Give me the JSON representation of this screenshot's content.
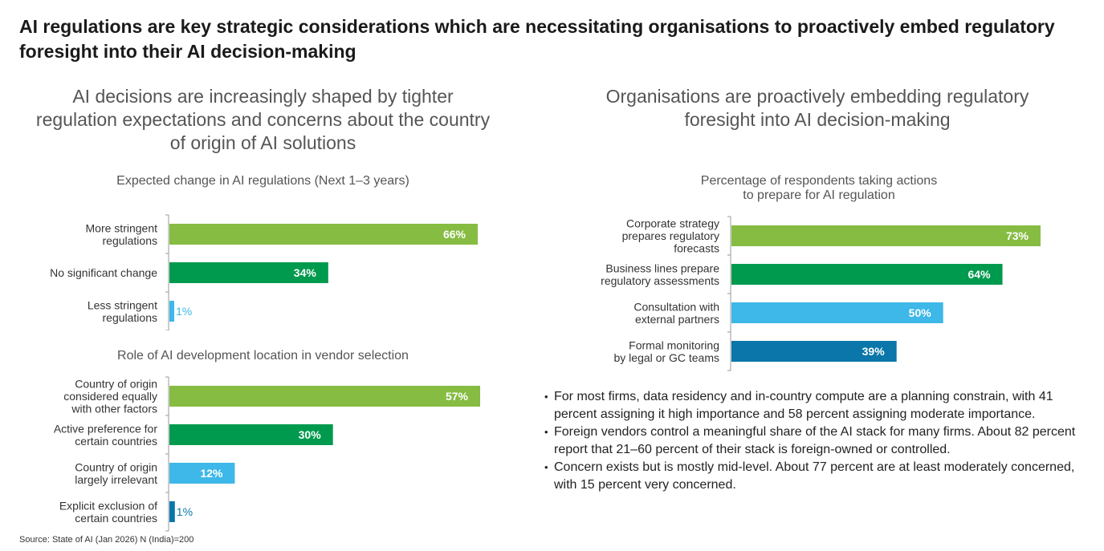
{
  "title": "AI regulations are key strategic considerations which are necessitating organisations to proactively embed regulatory foresight into their AI decision-making",
  "left_section_title": "AI decisions are increasingly shaped by tighter regulation expectations and concerns about the country of origin of AI solutions",
  "right_section_title": "Organisations are proactively embedding regulatory foresight into AI decision-making",
  "bullets": [
    "For most firms, data residency and in-country compute are a planning constrain, with 41 percent assigning it high importance and 58 percent assigning moderate importance.",
    "Foreign vendors control a meaningful share of the AI stack for many firms. About 82 percent report that 21–60 percent of their stack is foreign-owned or controlled.",
    "Concern exists but is mostly mid-level. About 77 percent are at least moderately concerned, with 15 percent very concerned."
  ],
  "source": "Source: State of AI (Jan 2026) N (India)=200",
  "colors": {
    "light_green": "#86bc42",
    "dark_green": "#009a4e",
    "light_blue": "#3db8e8",
    "dark_blue": "#0a76a9"
  },
  "chart_data": [
    {
      "type": "bar",
      "orientation": "horizontal",
      "title": "Expected change in AI regulations (Next 1–3 years)",
      "categories": [
        [
          "More stringent",
          "regulations"
        ],
        [
          "No significant change"
        ],
        [
          "Less stringent",
          "regulations"
        ]
      ],
      "values": [
        66,
        34,
        1
      ],
      "labels": [
        "66%",
        "34%",
        "1%"
      ],
      "colors": [
        "#86bc42",
        "#009a4e",
        "#3db8e8"
      ],
      "xlim": [
        0,
        66
      ],
      "unit": "%"
    },
    {
      "type": "bar",
      "orientation": "horizontal",
      "title": "Role of AI development location in vendor selection",
      "categories": [
        [
          "Country of origin",
          "considered equally",
          "with other factors"
        ],
        [
          "Active preference for",
          "certain countries"
        ],
        [
          "Country of origin",
          "largely irrelevant"
        ],
        [
          "Explicit exclusion of",
          "certain countries"
        ]
      ],
      "values": [
        57,
        30,
        12,
        1
      ],
      "labels": [
        "57%",
        "30%",
        "12%",
        "1%"
      ],
      "colors": [
        "#86bc42",
        "#009a4e",
        "#3db8e8",
        "#0a76a9"
      ],
      "xlim": [
        0,
        57
      ],
      "unit": "%"
    },
    {
      "type": "bar",
      "orientation": "horizontal",
      "title": "Percentage of respondents taking actions to prepare for AI regulation",
      "title_lines": [
        "Percentage of respondents taking actions",
        "to prepare for AI regulation"
      ],
      "categories": [
        [
          "Corporate strategy",
          "prepares regulatory",
          "forecasts"
        ],
        [
          "Business lines prepare",
          "regulatory assessments"
        ],
        [
          "Consultation with",
          "external partners"
        ],
        [
          "Formal monitoring",
          "by legal or GC teams"
        ]
      ],
      "values": [
        73,
        64,
        50,
        39
      ],
      "labels": [
        "73%",
        "64%",
        "50%",
        "39%"
      ],
      "colors": [
        "#86bc42",
        "#009a4e",
        "#3db8e8",
        "#0a76a9"
      ],
      "xlim": [
        0,
        73
      ],
      "unit": "%"
    }
  ]
}
